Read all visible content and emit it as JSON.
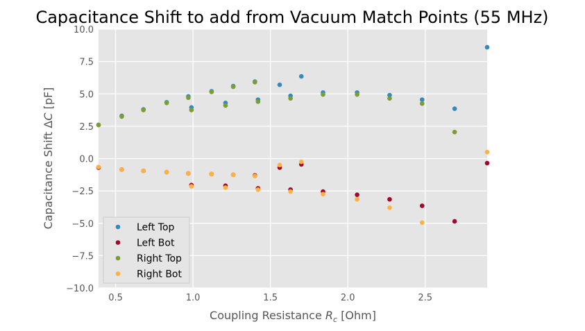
{
  "chart_data": {
    "type": "scatter",
    "title": "Capacitance Shift to add from Vacuum Match Points (55 MHz)",
    "xlabel": "Coupling Resistance R_c [Ohm]",
    "ylabel": "Capacitance Shift ΔC [pF]",
    "xlim": [
      0.39,
      2.9
    ],
    "ylim": [
      -10.0,
      10.0
    ],
    "xticks": [
      "0.5",
      "1.0",
      "1.5",
      "2.0",
      "2.5"
    ],
    "xtick_values": [
      0.5,
      1.0,
      1.5,
      2.0,
      2.5
    ],
    "yticks": [
      "−10.0",
      "−7.5",
      "−5.0",
      "−2.5",
      "0.0",
      "2.5",
      "5.0",
      "7.5",
      "10.0"
    ],
    "ytick_values": [
      -10.0,
      -7.5,
      -5.0,
      -2.5,
      0.0,
      2.5,
      5.0,
      7.5,
      10.0
    ],
    "grid": true,
    "legend_position": "lower-left",
    "series": [
      {
        "name": "Left Top",
        "color": "#348ABD",
        "points": [
          [
            0.39,
            2.6
          ],
          [
            0.54,
            3.3
          ],
          [
            0.68,
            3.8
          ],
          [
            0.83,
            4.35
          ],
          [
            0.97,
            4.8
          ],
          [
            0.99,
            3.95
          ],
          [
            1.12,
            5.2
          ],
          [
            1.21,
            4.3
          ],
          [
            1.26,
            5.6
          ],
          [
            1.4,
            5.95
          ],
          [
            1.42,
            4.55
          ],
          [
            1.56,
            5.7
          ],
          [
            1.63,
            4.85
          ],
          [
            1.7,
            6.35
          ],
          [
            1.84,
            5.1
          ],
          [
            2.06,
            5.1
          ],
          [
            2.27,
            4.9
          ],
          [
            2.48,
            4.55
          ],
          [
            2.69,
            3.85
          ],
          [
            2.9,
            8.6
          ]
        ]
      },
      {
        "name": "Left Bot",
        "color": "#A60628",
        "points": [
          [
            0.39,
            -0.7
          ],
          [
            0.54,
            -0.85
          ],
          [
            0.68,
            -0.95
          ],
          [
            0.83,
            -1.05
          ],
          [
            0.97,
            -1.15
          ],
          [
            0.99,
            -2.05
          ],
          [
            1.12,
            -1.2
          ],
          [
            1.21,
            -2.1
          ],
          [
            1.26,
            -1.25
          ],
          [
            1.4,
            -1.3
          ],
          [
            1.42,
            -2.3
          ],
          [
            1.56,
            -0.7
          ],
          [
            1.63,
            -2.4
          ],
          [
            1.7,
            -0.45
          ],
          [
            1.84,
            -2.55
          ],
          [
            2.06,
            -2.8
          ],
          [
            2.27,
            -3.15
          ],
          [
            2.48,
            -3.65
          ],
          [
            2.69,
            -4.85
          ],
          [
            2.9,
            -0.35
          ]
        ]
      },
      {
        "name": "Right Top",
        "color": "#7A9E31",
        "points": [
          [
            0.39,
            2.6
          ],
          [
            0.54,
            3.25
          ],
          [
            0.68,
            3.75
          ],
          [
            0.83,
            4.3
          ],
          [
            0.97,
            4.7
          ],
          [
            0.99,
            3.75
          ],
          [
            1.12,
            5.15
          ],
          [
            1.21,
            4.1
          ],
          [
            1.26,
            5.55
          ],
          [
            1.4,
            5.9
          ],
          [
            1.42,
            4.4
          ],
          [
            1.63,
            4.65
          ],
          [
            1.84,
            4.95
          ],
          [
            2.06,
            4.95
          ],
          [
            2.27,
            4.65
          ],
          [
            2.48,
            4.25
          ],
          [
            2.69,
            2.05
          ]
        ]
      },
      {
        "name": "Right Bot",
        "color": "#FFB142",
        "points": [
          [
            0.39,
            -0.65
          ],
          [
            0.54,
            -0.85
          ],
          [
            0.68,
            -0.95
          ],
          [
            0.83,
            -1.05
          ],
          [
            0.97,
            -1.15
          ],
          [
            0.99,
            -2.15
          ],
          [
            1.12,
            -1.2
          ],
          [
            1.21,
            -2.25
          ],
          [
            1.26,
            -1.25
          ],
          [
            1.4,
            -1.35
          ],
          [
            1.42,
            -2.4
          ],
          [
            1.56,
            -0.5
          ],
          [
            1.63,
            -2.55
          ],
          [
            1.7,
            -0.25
          ],
          [
            1.84,
            -2.75
          ],
          [
            2.06,
            -3.15
          ],
          [
            2.27,
            -3.8
          ],
          [
            2.48,
            -4.95
          ],
          [
            2.9,
            0.5
          ]
        ]
      }
    ]
  }
}
